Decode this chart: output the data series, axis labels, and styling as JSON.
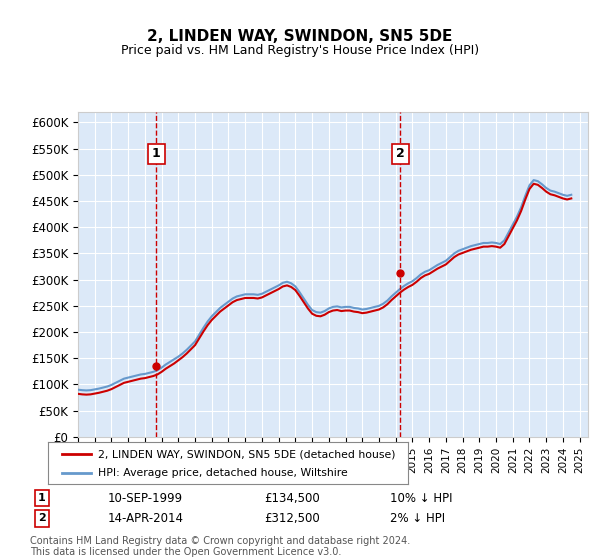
{
  "title": "2, LINDEN WAY, SWINDON, SN5 5DE",
  "subtitle": "Price paid vs. HM Land Registry's House Price Index (HPI)",
  "ylabel_ticks": [
    "£0",
    "£50K",
    "£100K",
    "£150K",
    "£200K",
    "£250K",
    "£300K",
    "£350K",
    "£400K",
    "£450K",
    "£500K",
    "£550K",
    "£600K"
  ],
  "ylim": [
    0,
    620000
  ],
  "xlim_start": 1995.0,
  "xlim_end": 2025.5,
  "background_color": "#dce9f8",
  "plot_bg": "#dce9f8",
  "sale1_x": 1999.69,
  "sale1_y": 134500,
  "sale1_label": "1",
  "sale1_date": "10-SEP-1999",
  "sale1_price": "£134,500",
  "sale1_hpi": "10% ↓ HPI",
  "sale2_x": 2014.28,
  "sale2_y": 312500,
  "sale2_label": "2",
  "sale2_date": "14-APR-2014",
  "sale2_price": "£312,500",
  "sale2_hpi": "2% ↓ HPI",
  "red_color": "#cc0000",
  "blue_color": "#6699cc",
  "legend_line1": "2, LINDEN WAY, SWINDON, SN5 5DE (detached house)",
  "legend_line2": "HPI: Average price, detached house, Wiltshire",
  "footnote": "Contains HM Land Registry data © Crown copyright and database right 2024.\nThis data is licensed under the Open Government Licence v3.0.",
  "hpi_data": {
    "years": [
      1995.0,
      1995.25,
      1995.5,
      1995.75,
      1996.0,
      1996.25,
      1996.5,
      1996.75,
      1997.0,
      1997.25,
      1997.5,
      1997.75,
      1998.0,
      1998.25,
      1998.5,
      1998.75,
      1999.0,
      1999.25,
      1999.5,
      1999.75,
      2000.0,
      2000.25,
      2000.5,
      2000.75,
      2001.0,
      2001.25,
      2001.5,
      2001.75,
      2002.0,
      2002.25,
      2002.5,
      2002.75,
      2003.0,
      2003.25,
      2003.5,
      2003.75,
      2004.0,
      2004.25,
      2004.5,
      2004.75,
      2005.0,
      2005.25,
      2005.5,
      2005.75,
      2006.0,
      2006.25,
      2006.5,
      2006.75,
      2007.0,
      2007.25,
      2007.5,
      2007.75,
      2008.0,
      2008.25,
      2008.5,
      2008.75,
      2009.0,
      2009.25,
      2009.5,
      2009.75,
      2010.0,
      2010.25,
      2010.5,
      2010.75,
      2011.0,
      2011.25,
      2011.5,
      2011.75,
      2012.0,
      2012.25,
      2012.5,
      2012.75,
      2013.0,
      2013.25,
      2013.5,
      2013.75,
      2014.0,
      2014.25,
      2014.5,
      2014.75,
      2015.0,
      2015.25,
      2015.5,
      2015.75,
      2016.0,
      2016.25,
      2016.5,
      2016.75,
      2017.0,
      2017.25,
      2017.5,
      2017.75,
      2018.0,
      2018.25,
      2018.5,
      2018.75,
      2019.0,
      2019.25,
      2019.5,
      2019.75,
      2020.0,
      2020.25,
      2020.5,
      2020.75,
      2021.0,
      2021.25,
      2021.5,
      2021.75,
      2022.0,
      2022.25,
      2022.5,
      2022.75,
      2023.0,
      2023.25,
      2023.5,
      2023.75,
      2024.0,
      2024.25,
      2024.5
    ],
    "values": [
      90000,
      89000,
      88500,
      89000,
      90500,
      92000,
      94000,
      96000,
      99000,
      103000,
      107000,
      111000,
      113000,
      115000,
      117000,
      119000,
      120000,
      122000,
      124000,
      127000,
      132000,
      138000,
      143000,
      148000,
      153000,
      159000,
      166000,
      174000,
      182000,
      195000,
      208000,
      220000,
      230000,
      238000,
      246000,
      252000,
      258000,
      264000,
      268000,
      270000,
      272000,
      272000,
      272000,
      271000,
      273000,
      277000,
      281000,
      285000,
      289000,
      294000,
      296000,
      293000,
      287000,
      276000,
      264000,
      252000,
      242000,
      238000,
      237000,
      240000,
      245000,
      248000,
      249000,
      247000,
      248000,
      248000,
      246000,
      245000,
      243000,
      244000,
      246000,
      248000,
      250000,
      254000,
      260000,
      268000,
      275000,
      282000,
      288000,
      293000,
      297000,
      303000,
      310000,
      315000,
      318000,
      323000,
      328000,
      332000,
      336000,
      343000,
      350000,
      355000,
      358000,
      361000,
      364000,
      366000,
      368000,
      370000,
      370000,
      371000,
      370000,
      368000,
      375000,
      390000,
      405000,
      420000,
      438000,
      460000,
      480000,
      490000,
      488000,
      482000,
      475000,
      470000,
      468000,
      465000,
      462000,
      460000,
      462000
    ]
  },
  "property_data": {
    "years": [
      1995.0,
      1995.25,
      1995.5,
      1995.75,
      1996.0,
      1996.25,
      1996.5,
      1996.75,
      1997.0,
      1997.25,
      1997.5,
      1997.75,
      1998.0,
      1998.25,
      1998.5,
      1998.75,
      1999.0,
      1999.25,
      1999.5,
      1999.75,
      2000.0,
      2000.25,
      2000.5,
      2000.75,
      2001.0,
      2001.25,
      2001.5,
      2001.75,
      2002.0,
      2002.25,
      2002.5,
      2002.75,
      2003.0,
      2003.25,
      2003.5,
      2003.75,
      2004.0,
      2004.25,
      2004.5,
      2004.75,
      2005.0,
      2005.25,
      2005.5,
      2005.75,
      2006.0,
      2006.25,
      2006.5,
      2006.75,
      2007.0,
      2007.25,
      2007.5,
      2007.75,
      2008.0,
      2008.25,
      2008.5,
      2008.75,
      2009.0,
      2009.25,
      2009.5,
      2009.75,
      2010.0,
      2010.25,
      2010.5,
      2010.75,
      2011.0,
      2011.25,
      2011.5,
      2011.75,
      2012.0,
      2012.25,
      2012.5,
      2012.75,
      2013.0,
      2013.25,
      2013.5,
      2013.75,
      2014.0,
      2014.25,
      2014.5,
      2014.75,
      2015.0,
      2015.25,
      2015.5,
      2015.75,
      2016.0,
      2016.25,
      2016.5,
      2016.75,
      2017.0,
      2017.25,
      2017.5,
      2017.75,
      2018.0,
      2018.25,
      2018.5,
      2018.75,
      2019.0,
      2019.25,
      2019.5,
      2019.75,
      2020.0,
      2020.25,
      2020.5,
      2020.75,
      2021.0,
      2021.25,
      2021.5,
      2021.75,
      2022.0,
      2022.25,
      2022.5,
      2022.75,
      2023.0,
      2023.25,
      2023.5,
      2023.75,
      2024.0,
      2024.25,
      2024.5
    ],
    "values": [
      82000,
      81000,
      80500,
      81000,
      82500,
      84000,
      86000,
      88000,
      91000,
      95000,
      99000,
      103000,
      105000,
      107000,
      109000,
      111000,
      112000,
      114000,
      116000,
      119000,
      124000,
      130000,
      135000,
      140000,
      146000,
      152000,
      159000,
      167000,
      175000,
      188000,
      201000,
      213000,
      223000,
      231000,
      239000,
      245000,
      251000,
      257000,
      261000,
      263000,
      265000,
      265000,
      265000,
      264000,
      266000,
      270000,
      274000,
      278000,
      282000,
      287000,
      289000,
      286000,
      280000,
      269000,
      257000,
      245000,
      235000,
      231000,
      230000,
      233000,
      238000,
      241000,
      242000,
      240000,
      241000,
      241000,
      239000,
      238000,
      236000,
      237000,
      239000,
      241000,
      243000,
      247000,
      253000,
      261000,
      268000,
      275000,
      281000,
      286000,
      290000,
      296000,
      303000,
      308000,
      311000,
      316000,
      321000,
      325000,
      329000,
      336000,
      343000,
      348000,
      351000,
      354000,
      357000,
      359000,
      361000,
      363000,
      363000,
      364000,
      363000,
      361000,
      368000,
      383000,
      398000,
      413000,
      431000,
      453000,
      473000,
      483000,
      481000,
      475000,
      468000,
      463000,
      461000,
      458000,
      455000,
      453000,
      455000
    ]
  }
}
